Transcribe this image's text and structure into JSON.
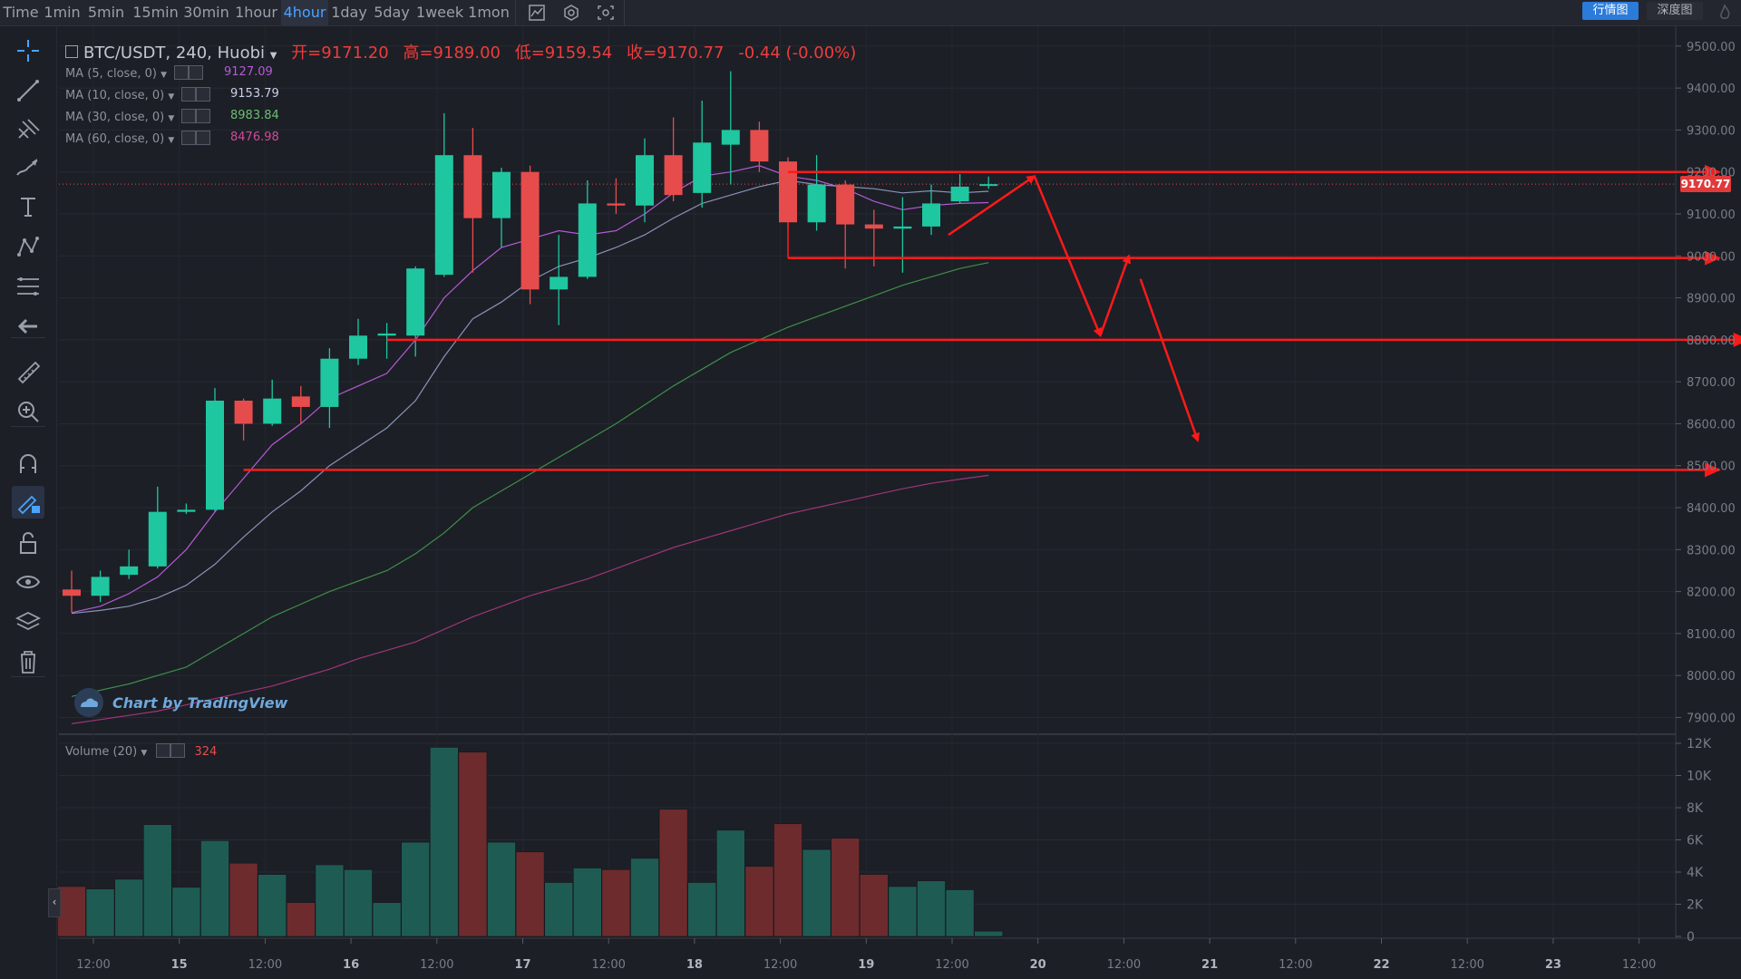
{
  "toolbar": {
    "timeframes": [
      "Time",
      "1min",
      "5min",
      "15min",
      "30min",
      "1hour",
      "4hour",
      "1day",
      "5day",
      "1week",
      "1mon"
    ],
    "active_timeframe": "4hour",
    "icons": [
      "chart-type-icon",
      "settings-icon",
      "screenshot-icon"
    ],
    "right_buttons": [
      "行情图",
      "深度图"
    ]
  },
  "sidebar": {
    "tools": [
      "crosshair-icon",
      "trend-line-icon",
      "pitchfork-icon",
      "brush-icon",
      "text-icon",
      "pattern-icon",
      "fib-icon",
      "back-arrow-icon",
      "ruler-icon",
      "zoom-in-icon",
      "magnet-icon",
      "lock-drawing-icon",
      "unlock-icon",
      "eye-icon",
      "layers-icon",
      "trash-icon"
    ]
  },
  "symbol": {
    "title": "BTC/USDT, 240, Huobi",
    "open_label": "开=9171.20",
    "high_label": "高=9189.00",
    "low_label": "低=9159.54",
    "close_label": "收=9170.77",
    "change_label": "-0.44 (-0.00%)"
  },
  "ma_lines": [
    {
      "label": "MA (5, close, 0)",
      "value": "9127.09",
      "color": "#b45ad6"
    },
    {
      "label": "MA (10, close, 0)",
      "value": "9153.79",
      "color": "#9aa8d0"
    },
    {
      "label": "MA (30, close, 0)",
      "value": "8983.84",
      "color": "#6cc070"
    },
    {
      "label": "MA (60, close, 0)",
      "value": "8476.98",
      "color": "#d04a9a"
    }
  ],
  "volume_legend": {
    "label": "Volume (20)",
    "value": "324"
  },
  "watermark": "Chart by TradingView",
  "last_price_tag": "9170.77",
  "colors": {
    "up": "#1fc7a0",
    "down": "#e74c4c",
    "vol_up": "#1e5c53",
    "vol_down": "#6e2b2d",
    "annotation": "#ff1a1a",
    "background": "#1c1f26"
  },
  "chart_data": {
    "type": "candlestick",
    "y_axis_labels": [
      "9500.00",
      "9400.00",
      "9300.00",
      "9200.00",
      "9100.00",
      "9000.00",
      "8900.00",
      "8800.00",
      "8700.00",
      "8600.00",
      "8500.00",
      "8400.00",
      "8300.00",
      "8200.00",
      "8100.00",
      "8000.00",
      "7900.00"
    ],
    "ylim": [
      7860,
      9545
    ],
    "volume_axis_labels": [
      "12K",
      "10K",
      "8K",
      "6K",
      "4K",
      "2K",
      "0"
    ],
    "volume_ylim": [
      0,
      12000
    ],
    "x_tick_labels": [
      "12:00",
      "15",
      "12:00",
      "16",
      "12:00",
      "17",
      "12:00",
      "18",
      "12:00",
      "19",
      "12:00",
      "20",
      "12:00",
      "21",
      "12:00",
      "22",
      "12:00",
      "23",
      "12:00"
    ],
    "candles": [
      {
        "o": 8205,
        "h": 8250,
        "l": 8150,
        "c": 8190
      },
      {
        "o": 8190,
        "h": 8250,
        "l": 8175,
        "c": 8235
      },
      {
        "o": 8240,
        "h": 8300,
        "l": 8230,
        "c": 8260
      },
      {
        "o": 8260,
        "h": 8450,
        "l": 8255,
        "c": 8390
      },
      {
        "o": 8390,
        "h": 8410,
        "l": 8385,
        "c": 8395
      },
      {
        "o": 8395,
        "h": 8685,
        "l": 8390,
        "c": 8655
      },
      {
        "o": 8655,
        "h": 8660,
        "l": 8560,
        "c": 8600
      },
      {
        "o": 8600,
        "h": 8705,
        "l": 8595,
        "c": 8660
      },
      {
        "o": 8665,
        "h": 8690,
        "l": 8600,
        "c": 8640
      },
      {
        "o": 8640,
        "h": 8780,
        "l": 8590,
        "c": 8755
      },
      {
        "o": 8755,
        "h": 8850,
        "l": 8740,
        "c": 8810
      },
      {
        "o": 8810,
        "h": 8840,
        "l": 8755,
        "c": 8815
      },
      {
        "o": 8810,
        "h": 8975,
        "l": 8760,
        "c": 8970
      },
      {
        "o": 8955,
        "h": 9340,
        "l": 8950,
        "c": 9240
      },
      {
        "o": 9240,
        "h": 9305,
        "l": 8960,
        "c": 9090
      },
      {
        "o": 9090,
        "h": 9210,
        "l": 9020,
        "c": 9200
      },
      {
        "o": 9200,
        "h": 9215,
        "l": 8885,
        "c": 8920
      },
      {
        "o": 8920,
        "h": 9050,
        "l": 8835,
        "c": 8950
      },
      {
        "o": 8950,
        "h": 9180,
        "l": 8945,
        "c": 9125
      },
      {
        "o": 9125,
        "h": 9185,
        "l": 9100,
        "c": 9120
      },
      {
        "o": 9120,
        "h": 9280,
        "l": 9080,
        "c": 9240
      },
      {
        "o": 9240,
        "h": 9330,
        "l": 9130,
        "c": 9145
      },
      {
        "o": 9150,
        "h": 9370,
        "l": 9115,
        "c": 9270
      },
      {
        "o": 9265,
        "h": 9440,
        "l": 9170,
        "c": 9300
      },
      {
        "o": 9300,
        "h": 9320,
        "l": 9200,
        "c": 9225
      },
      {
        "o": 9225,
        "h": 9235,
        "l": 9060,
        "c": 9080
      },
      {
        "o": 9080,
        "h": 9240,
        "l": 9060,
        "c": 9170
      },
      {
        "o": 9170,
        "h": 9180,
        "l": 8970,
        "c": 9075
      },
      {
        "o": 9075,
        "h": 9110,
        "l": 8975,
        "c": 9065
      },
      {
        "o": 9065,
        "h": 9140,
        "l": 8960,
        "c": 9070
      },
      {
        "o": 9070,
        "h": 9170,
        "l": 9050,
        "c": 9125
      },
      {
        "o": 9130,
        "h": 9195,
        "l": 9125,
        "c": 9165
      },
      {
        "o": 9171,
        "h": 9189,
        "l": 9160,
        "c": 9171
      }
    ],
    "volumes": [
      3100,
      2950,
      3550,
      6950,
      3050,
      5950,
      4550,
      3850,
      2100,
      4450,
      4150,
      2100,
      5850,
      11750,
      11450,
      5850,
      5250,
      3350,
      4250,
      4150,
      4850,
      7900,
      3350,
      6600,
      4350,
      7000,
      5400,
      6100,
      3850,
      3100,
      3450,
      2900,
      324
    ],
    "ma5": [
      8150,
      8165,
      8195,
      8235,
      8300,
      8390,
      8470,
      8550,
      8600,
      8660,
      8690,
      8720,
      8800,
      8900,
      8965,
      9020,
      9040,
      9060,
      9050,
      9060,
      9100,
      9150,
      9190,
      9200,
      9215,
      9190,
      9180,
      9160,
      9130,
      9110,
      9120,
      9125,
      9127
    ],
    "ma10": [
      8148,
      8155,
      8165,
      8185,
      8215,
      8265,
      8330,
      8390,
      8440,
      8500,
      8545,
      8590,
      8655,
      8760,
      8850,
      8890,
      8940,
      8975,
      8995,
      9020,
      9050,
      9090,
      9125,
      9145,
      9165,
      9180,
      9170,
      9165,
      9160,
      9150,
      9155,
      9150,
      9154
    ],
    "ma30": [
      7950,
      7965,
      7980,
      8000,
      8020,
      8060,
      8100,
      8140,
      8170,
      8200,
      8225,
      8250,
      8290,
      8340,
      8400,
      8440,
      8480,
      8520,
      8560,
      8600,
      8645,
      8690,
      8730,
      8770,
      8800,
      8830,
      8855,
      8880,
      8905,
      8930,
      8950,
      8970,
      8984
    ],
    "ma60": [
      7885,
      7895,
      7905,
      7915,
      7930,
      7945,
      7960,
      7975,
      7995,
      8015,
      8040,
      8060,
      8080,
      8110,
      8140,
      8165,
      8190,
      8210,
      8230,
      8255,
      8280,
      8305,
      8325,
      8345,
      8365,
      8385,
      8400,
      8415,
      8430,
      8445,
      8458,
      8468,
      8477
    ],
    "annotations": {
      "horizontal_lines": [
        {
          "x1_index": 25,
          "y": 9200,
          "x2_index": 57.5
        },
        {
          "x1_index": 25,
          "y": 8995,
          "x2_index": 57.5
        },
        {
          "x1_index": 11,
          "y": 8800,
          "x2_index": 58.5
        },
        {
          "x1_index": 6,
          "y": 8490,
          "x2_index": 57.5
        }
      ],
      "arrows": [
        {
          "from": [
            30.6,
            9050
          ],
          "to": [
            33.6,
            9190
          ]
        },
        {
          "from": [
            33.6,
            9190
          ],
          "to": [
            35.9,
            8810
          ]
        },
        {
          "from": [
            35.9,
            8810
          ],
          "to": [
            36.9,
            9000
          ]
        },
        {
          "from": [
            37.3,
            8945
          ],
          "to": [
            39.3,
            8560
          ]
        }
      ]
    }
  }
}
